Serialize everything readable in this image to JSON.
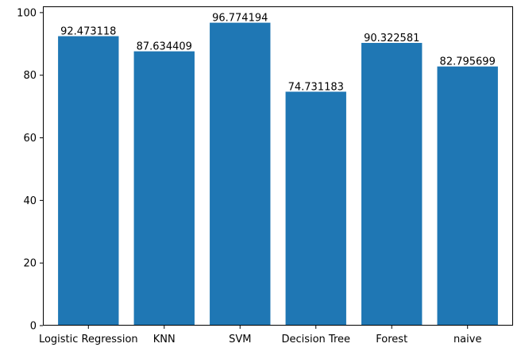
{
  "chart_data": {
    "type": "bar",
    "title": "",
    "xlabel": "",
    "ylabel": "",
    "categories": [
      "Logistic Regression",
      "KNN",
      "SVM",
      "Decision Tree",
      "Forest",
      "naive"
    ],
    "values": [
      92.473118,
      87.634409,
      96.774194,
      74.731183,
      90.322581,
      82.795699
    ],
    "data_labels": [
      "92.473118",
      "87.634409",
      "96.774194",
      "74.731183",
      "90.322581",
      "82.795699"
    ],
    "ylim": [
      0,
      102
    ],
    "yticks": [
      0,
      20,
      40,
      60,
      80,
      100
    ],
    "bar_color": "#1f77b4",
    "grid": false,
    "legend": "none"
  }
}
